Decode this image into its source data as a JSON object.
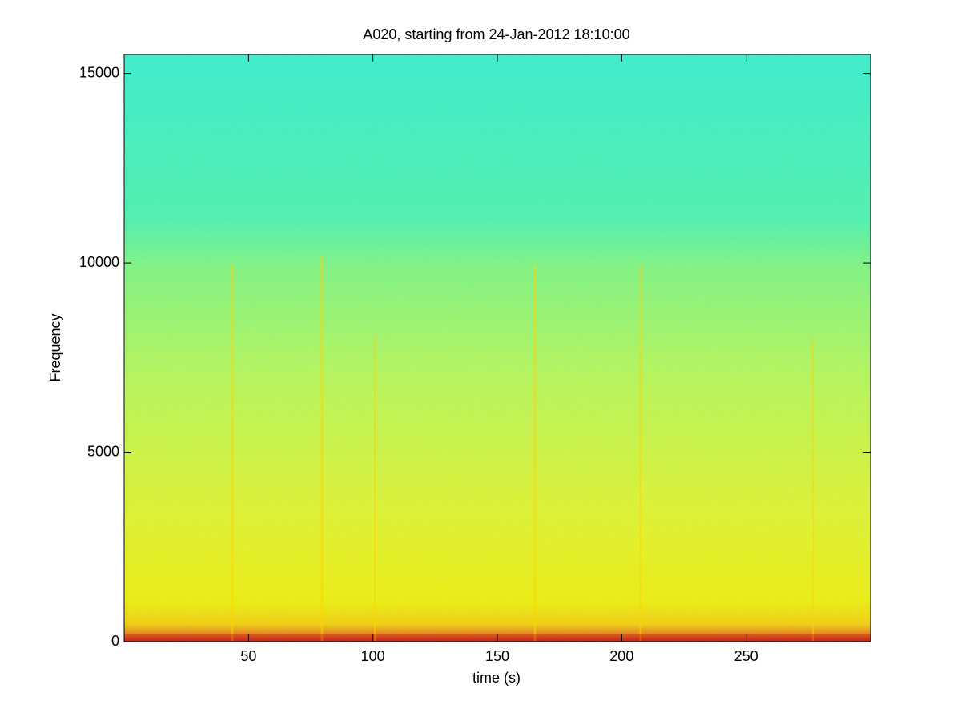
{
  "chart_data": {
    "type": "spectrogram",
    "title": "A020, starting from 24-Jan-2012 18:10:00",
    "xlabel": "time (s)",
    "ylabel": "Frequency",
    "xlim": [
      0,
      300
    ],
    "xticks": [
      50,
      100,
      150,
      200,
      250
    ],
    "ylim": [
      0,
      15500
    ],
    "yticks": [
      0,
      5000,
      10000,
      15000
    ]
  }
}
